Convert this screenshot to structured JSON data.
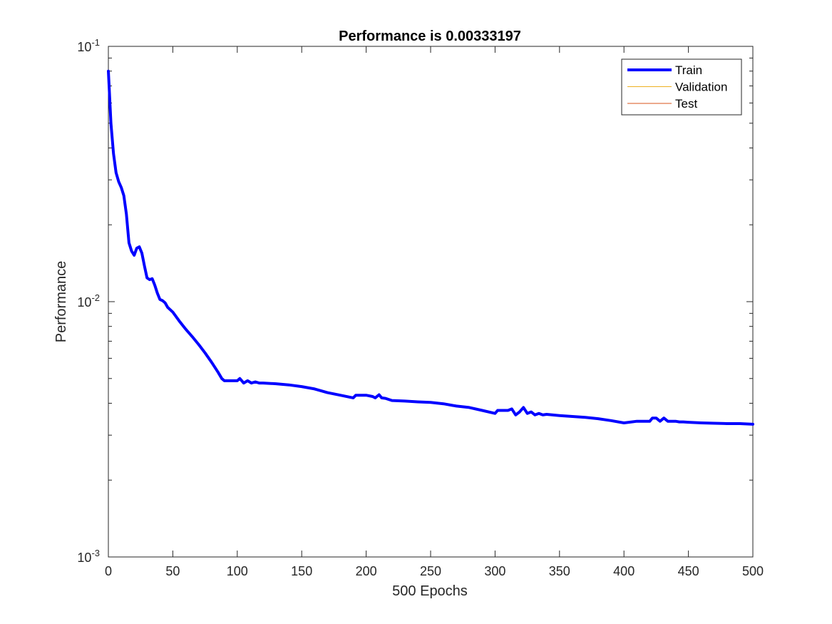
{
  "chart_data": {
    "type": "line",
    "title": "Performance is 0.00333197",
    "xlabel": "500 Epochs",
    "ylabel": "Performance",
    "yscale": "log",
    "xlim": [
      0,
      500
    ],
    "ylim": [
      0.001,
      0.1
    ],
    "x_ticks": [
      0,
      50,
      100,
      150,
      200,
      250,
      300,
      350,
      400,
      450,
      500
    ],
    "y_ticks": [
      {
        "value": 0.1,
        "base": "10",
        "exp": "-1"
      },
      {
        "value": 0.01,
        "base": "10",
        "exp": "-2"
      },
      {
        "value": 0.001,
        "base": "10",
        "exp": "-3"
      }
    ],
    "grid": false,
    "legend_position": "top-right",
    "series": [
      {
        "name": "Train",
        "color": "#0000ff",
        "x": [
          0,
          2,
          4,
          6,
          8,
          10,
          12,
          14,
          16,
          18,
          20,
          22,
          24,
          26,
          28,
          30,
          32,
          34,
          36,
          38,
          40,
          42,
          44,
          46,
          48,
          50,
          55,
          60,
          65,
          70,
          75,
          80,
          85,
          88,
          90,
          95,
          100,
          102,
          105,
          108,
          111,
          114,
          117,
          120,
          130,
          140,
          150,
          160,
          170,
          180,
          190,
          192,
          195,
          200,
          205,
          207,
          210,
          212,
          215,
          220,
          230,
          240,
          250,
          260,
          270,
          280,
          290,
          300,
          302,
          305,
          310,
          313,
          316,
          319,
          322,
          325,
          328,
          331,
          334,
          337,
          340,
          350,
          360,
          370,
          380,
          390,
          400,
          410,
          412,
          415,
          420,
          422,
          425,
          428,
          431,
          434,
          437,
          440,
          443,
          446,
          450,
          460,
          470,
          480,
          490,
          500
        ],
        "values": [
          0.08,
          0.05,
          0.038,
          0.032,
          0.0295,
          0.028,
          0.026,
          0.022,
          0.017,
          0.0158,
          0.0152,
          0.0162,
          0.0164,
          0.0155,
          0.0138,
          0.0124,
          0.0122,
          0.0123,
          0.0116,
          0.0108,
          0.0102,
          0.0101,
          0.0099,
          0.0095,
          0.0093,
          0.0091,
          0.0084,
          0.0078,
          0.0073,
          0.0068,
          0.0063,
          0.0058,
          0.0053,
          0.005,
          0.0049,
          0.0049,
          0.0049,
          0.005,
          0.0048,
          0.0049,
          0.0048,
          0.00485,
          0.0048,
          0.0048,
          0.00477,
          0.00472,
          0.00465,
          0.00455,
          0.0044,
          0.0043,
          0.0042,
          0.0043,
          0.0043,
          0.0043,
          0.00425,
          0.0042,
          0.00432,
          0.0042,
          0.00418,
          0.0041,
          0.00408,
          0.00405,
          0.00403,
          0.00398,
          0.0039,
          0.00385,
          0.00375,
          0.00365,
          0.00375,
          0.00375,
          0.00375,
          0.0038,
          0.0036,
          0.0037,
          0.00385,
          0.00365,
          0.0037,
          0.0036,
          0.00365,
          0.0036,
          0.00362,
          0.00358,
          0.00355,
          0.00352,
          0.00348,
          0.00342,
          0.00335,
          0.0034,
          0.0034,
          0.0034,
          0.0034,
          0.0035,
          0.0035,
          0.0034,
          0.0035,
          0.0034,
          0.0034,
          0.0034,
          0.00338,
          0.00338,
          0.00337,
          0.00335,
          0.00334,
          0.00333,
          0.00333,
          0.00331
        ]
      },
      {
        "name": "Validation",
        "color": "#edb120",
        "x": [],
        "values": []
      },
      {
        "name": "Test",
        "color": "#d95319",
        "x": [],
        "values": []
      }
    ]
  }
}
